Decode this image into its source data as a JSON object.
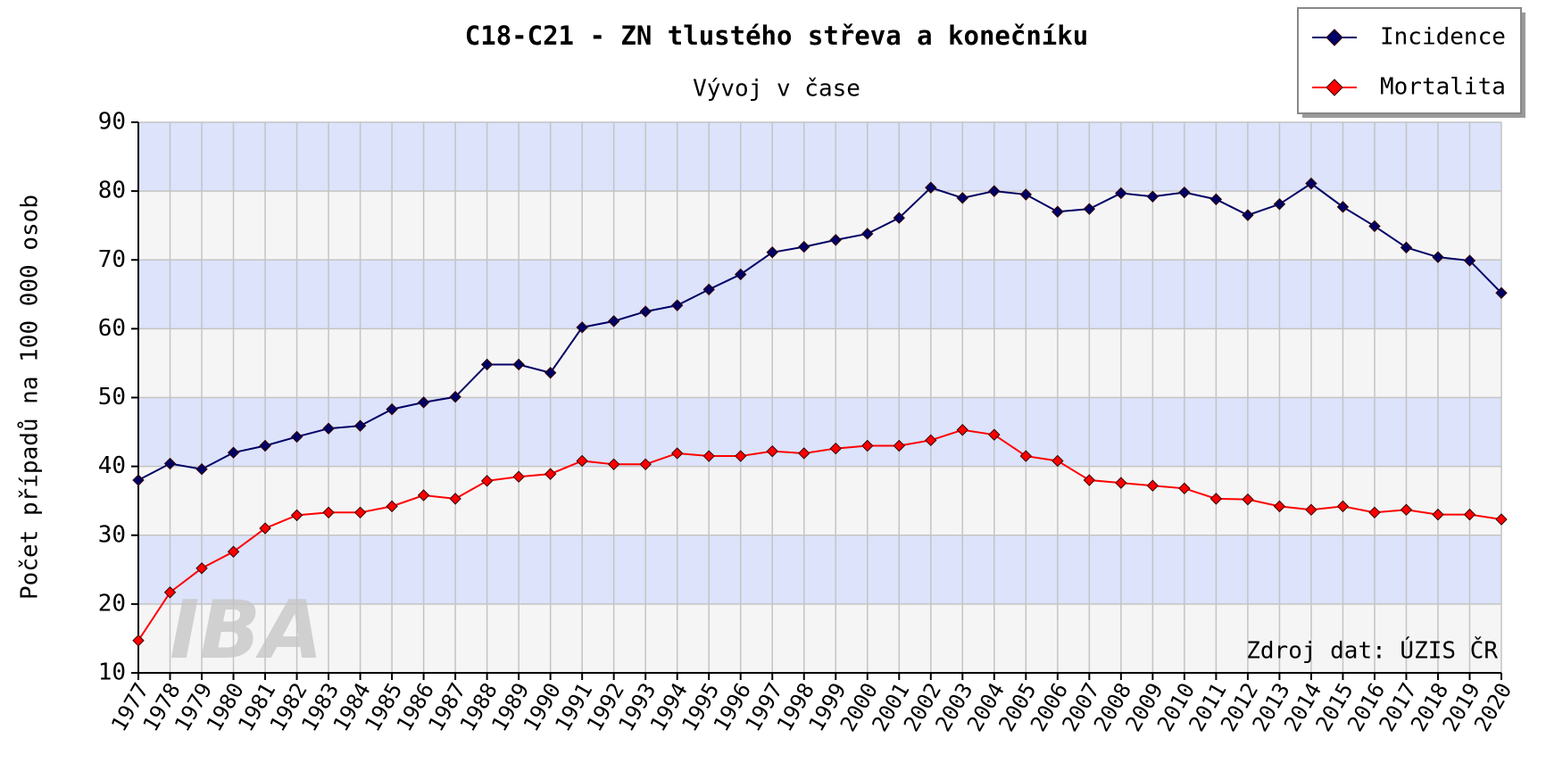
{
  "chart_data": {
    "type": "line",
    "title": "C18-C21 - ZN tlustého střeva a konečníku",
    "subtitle": "Vývoj v čase",
    "y_label": "Počet případů na 100 000 osob",
    "annotation": "Zdroj dat: ÚZIS ČR",
    "watermark": "IBA",
    "categories": [
      "1977",
      "1978",
      "1979",
      "1980",
      "1981",
      "1982",
      "1983",
      "1984",
      "1985",
      "1986",
      "1987",
      "1988",
      "1989",
      "1990",
      "1991",
      "1992",
      "1993",
      "1994",
      "1995",
      "1996",
      "1997",
      "1998",
      "1999",
      "2000",
      "2001",
      "2002",
      "2003",
      "2004",
      "2005",
      "2006",
      "2007",
      "2008",
      "2009",
      "2010",
      "2011",
      "2012",
      "2013",
      "2014",
      "2015",
      "2016",
      "2017",
      "2018",
      "2019",
      "2020"
    ],
    "series": [
      {
        "name": "Incidence",
        "color": "#000066",
        "values": [
          38.0,
          40.4,
          39.6,
          42.0,
          43.0,
          44.3,
          45.5,
          45.9,
          48.3,
          49.3,
          50.1,
          54.8,
          54.8,
          53.6,
          60.2,
          61.1,
          62.5,
          63.4,
          65.7,
          67.9,
          71.1,
          71.9,
          72.9,
          73.8,
          76.1,
          80.5,
          79.0,
          80.0,
          79.5,
          77.0,
          77.4,
          79.7,
          79.2,
          79.8,
          78.8,
          76.5,
          78.1,
          81.1,
          77.7,
          74.9,
          71.8,
          70.4,
          69.9,
          65.2
        ]
      },
      {
        "name": "Mortalita",
        "color": "#ff0000",
        "values": [
          14.7,
          21.7,
          25.2,
          27.6,
          31.0,
          32.9,
          33.3,
          33.3,
          34.2,
          35.8,
          35.3,
          37.9,
          38.5,
          38.9,
          40.8,
          40.3,
          40.3,
          41.9,
          41.5,
          41.5,
          42.2,
          41.9,
          42.6,
          43.0,
          43.0,
          43.8,
          45.3,
          44.6,
          41.5,
          40.8,
          38.0,
          37.6,
          37.2,
          36.8,
          35.3,
          35.2,
          34.2,
          33.7,
          34.2,
          33.3,
          33.7,
          33.0,
          33.0,
          32.3
        ]
      }
    ],
    "ylim": [
      10,
      90
    ],
    "yticks": [
      10,
      20,
      30,
      40,
      50,
      60,
      70,
      80,
      90
    ],
    "grid": true,
    "legend": "upper right"
  }
}
